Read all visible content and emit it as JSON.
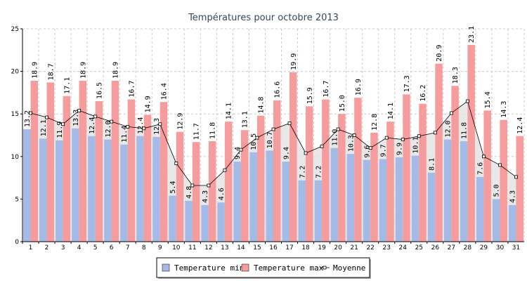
{
  "chart_data": {
    "type": "bar",
    "title": "Températures pour octobre 2013",
    "xlabel": "",
    "ylabel": "",
    "ylim": [
      0,
      25
    ],
    "yticks": [
      0,
      5,
      10,
      15,
      20,
      25
    ],
    "grid": true,
    "legend_position": "bottom-center",
    "categories": [
      "1",
      "2",
      "3",
      "4",
      "5",
      "6",
      "7",
      "8",
      "9",
      "10",
      "11",
      "12",
      "13",
      "14",
      "15",
      "16",
      "17",
      "18",
      "19",
      "20",
      "21",
      "22",
      "23",
      "24",
      "25",
      "26",
      "27",
      "28",
      "29",
      "30",
      "31"
    ],
    "series": [
      {
        "name": "Temperature min",
        "kind": "bar",
        "color": "#a4bbe8",
        "values": [
          13.2,
          12.1,
          11.9,
          13.3,
          12.4,
          12.0,
          11.4,
          12.4,
          12.3,
          5.4,
          4.8,
          4.3,
          4.6,
          9.4,
          10.5,
          10.7,
          9.4,
          7.2,
          7.2,
          11.0,
          10.3,
          9.6,
          9.7,
          9.9,
          10.1,
          8.1,
          12.0,
          11.8,
          7.6,
          5.0,
          4.3
        ]
      },
      {
        "name": "Temperature max",
        "kind": "bar",
        "color": "#f79c9c",
        "values": [
          18.9,
          18.7,
          17.1,
          18.9,
          16.5,
          18.9,
          16.7,
          14.9,
          16.4,
          12.9,
          11.7,
          11.8,
          14.1,
          13.1,
          14.8,
          16.6,
          19.9,
          15.9,
          16.7,
          15.0,
          16.9,
          12.8,
          14.1,
          17.3,
          16.2,
          20.9,
          18.3,
          23.1,
          15.4,
          14.3,
          12.4
        ]
      },
      {
        "name": "Moyenne",
        "kind": "line",
        "color": "#000000",
        "values": [
          15.1,
          14.6,
          13.8,
          15.4,
          14.7,
          14.1,
          13.5,
          13.3,
          13.8,
          9.2,
          6.6,
          6.6,
          8.4,
          10.8,
          12.2,
          13.2,
          13.9,
          10.4,
          11.2,
          13.2,
          12.5,
          11.0,
          12.2,
          12.0,
          12.4,
          12.8,
          15.1,
          16.5,
          10.0,
          9.0,
          7.6
        ]
      }
    ],
    "colors": {
      "min": "#a4bbe8",
      "max": "#f79c9c",
      "mean_line": "#000000",
      "area_fill": "#e4e4e4",
      "grid": "#cccccc",
      "title": "#33475f"
    }
  }
}
